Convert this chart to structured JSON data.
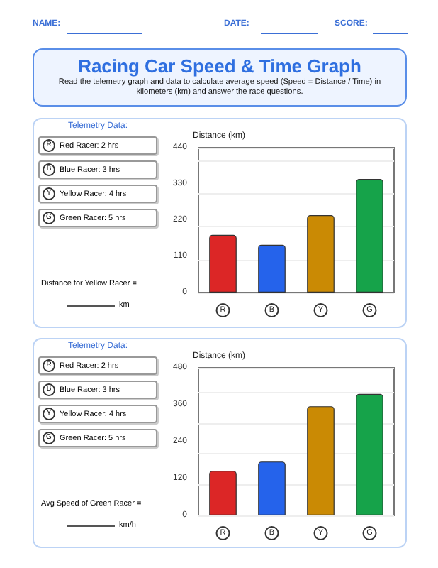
{
  "chart_data": [
    {
      "type": "other",
      "title": "Racing Car Speed & Time Graph",
      "subtitle": "Read the telemetry graph and data to calculate average speed (Speed = Distance / Time) in kilometers (km) and answer the race questions.",
      "annotations": [
        "NAME:",
        "DATE:",
        "SCORE:"
      ]
    },
    {
      "type": "other",
      "title": "Telemetry Data:",
      "annotations": [
        "R",
        "Red Racer: 2 hrs",
        "B",
        "Blue Racer: 3 hrs",
        "Y",
        "Yellow Racer: 4 hrs",
        "G",
        "Green Racer: 5 hrs",
        "Distance for Yellow Racer =",
        "km"
      ]
    },
    {
      "type": "bar",
      "ylabel": "Distance (km)",
      "categories": [
        "R",
        "B",
        "Y",
        "G"
      ],
      "values": [
        175,
        145,
        235,
        345
      ],
      "colors": [
        "#dc2626",
        "#2563eb",
        "#ca8a04",
        "#16a34a"
      ],
      "ylim": [
        0,
        440
      ],
      "yticks": [
        0,
        110,
        220,
        330,
        440
      ],
      "grid": "y"
    },
    {
      "type": "other",
      "title": "Telemetry Data:",
      "annotations": [
        "R",
        "Red Racer: 2 hrs",
        "B",
        "Blue Racer: 3 hrs",
        "Y",
        "Yellow Racer: 4 hrs",
        "G",
        "Green Racer: 5 hrs",
        "Avg Speed of Green Racer =",
        "km/h"
      ]
    },
    {
      "type": "bar",
      "ylabel": "Distance (km)",
      "categories": [
        "R",
        "B",
        "Y",
        "G"
      ],
      "values": [
        145,
        175,
        355,
        395
      ],
      "colors": [
        "#dc2626",
        "#2563eb",
        "#ca8a04",
        "#16a34a"
      ],
      "ylim": [
        0,
        480
      ],
      "yticks": [
        0,
        120,
        240,
        360,
        480
      ],
      "grid": "y"
    }
  ]
}
